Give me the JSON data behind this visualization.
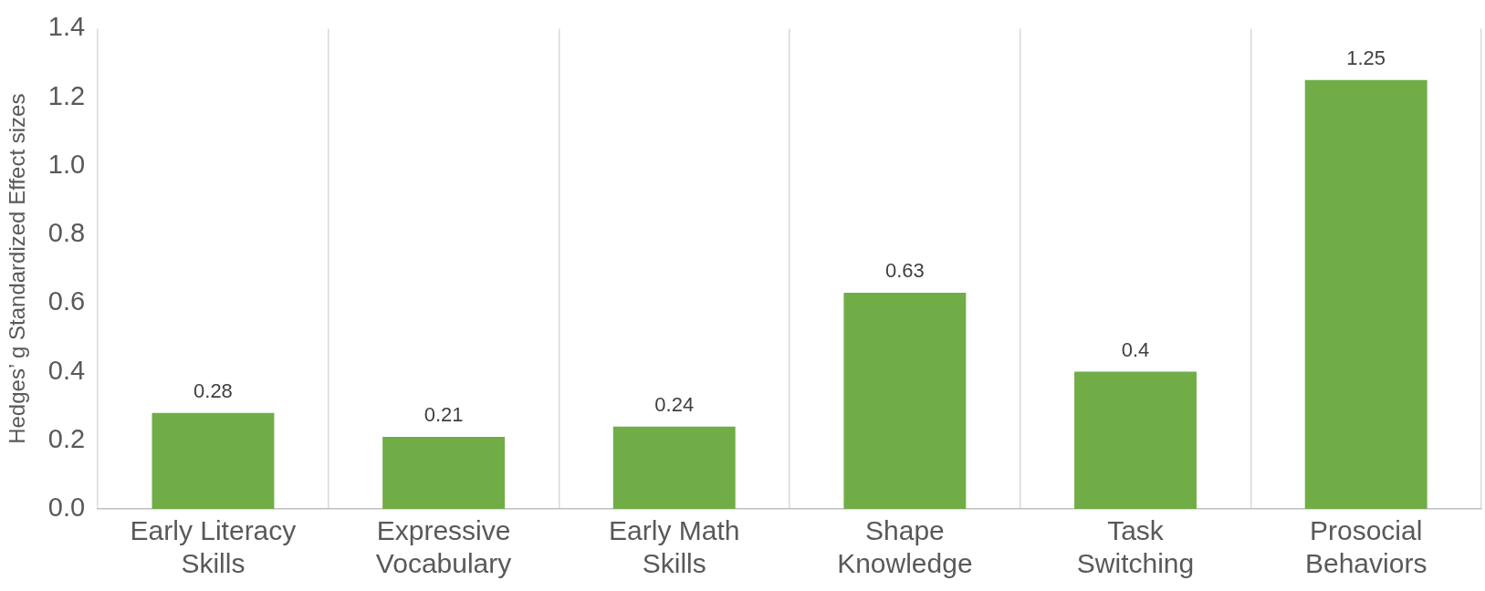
{
  "chart_data": {
    "type": "bar",
    "ylabel": "Hedges’ g Standardized Effect sizes",
    "categories": [
      "Early Literacy Skills",
      "Expressive Vocabulary",
      "Early Math Skills",
      "Shape Knowledge",
      "Task Switching",
      "Prosocial Behaviors"
    ],
    "values": [
      0.28,
      0.21,
      0.24,
      0.63,
      0.4,
      1.25
    ],
    "color": "#70ad47",
    "ylim": [
      0,
      1.4
    ],
    "yticks": [
      {
        "value": 0,
        "label": "0.0"
      },
      {
        "value": 0.2,
        "label": "0.2"
      },
      {
        "value": 0.4,
        "label": "0.4"
      },
      {
        "value": 0.6,
        "label": "0.6"
      },
      {
        "value": 0.8,
        "label": "0.8"
      },
      {
        "value": 1,
        "label": "1.0"
      },
      {
        "value": 1.2,
        "label": "1.2"
      },
      {
        "value": 1.4,
        "label": "1.4"
      }
    ],
    "grid": "x",
    "data_labels": true,
    "legend": false
  }
}
